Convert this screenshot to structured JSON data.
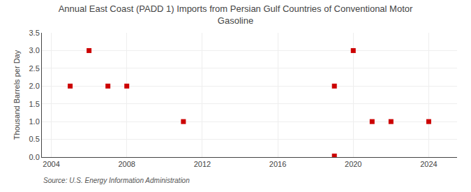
{
  "chart_data": {
    "type": "scatter",
    "title": "Annual East Coast (PADD 1) Imports from Persian Gulf Countries of Conventional Motor\nGasoline",
    "ylabel": "Thousand Barrels per Day",
    "annotations": [
      "Source: U.S. Energy Information Administration"
    ],
    "x": [
      2005,
      2006,
      2007,
      2008,
      2011,
      2019,
      2019,
      2020,
      2021,
      2022,
      2024
    ],
    "values": [
      2.0,
      3.0,
      2.0,
      2.0,
      1.0,
      0.03,
      2.0,
      3.0,
      1.0,
      1.0,
      1.0
    ],
    "color": "#cc0000",
    "marker": "square",
    "xlim": [
      2003.5,
      2025.5
    ],
    "ylim": [
      0.0,
      3.5
    ],
    "xticks": [
      2004,
      2008,
      2012,
      2016,
      2020,
      2024
    ],
    "yticks": [
      {
        "value": 0.0,
        "label": "0.0"
      },
      0.5,
      {
        "value": 1.0,
        "label": "1.0"
      },
      1.5,
      {
        "value": 2.0,
        "label": "2.0"
      },
      2.5,
      {
        "value": 3.0,
        "label": "3.0"
      },
      3.5
    ],
    "grid": true
  }
}
